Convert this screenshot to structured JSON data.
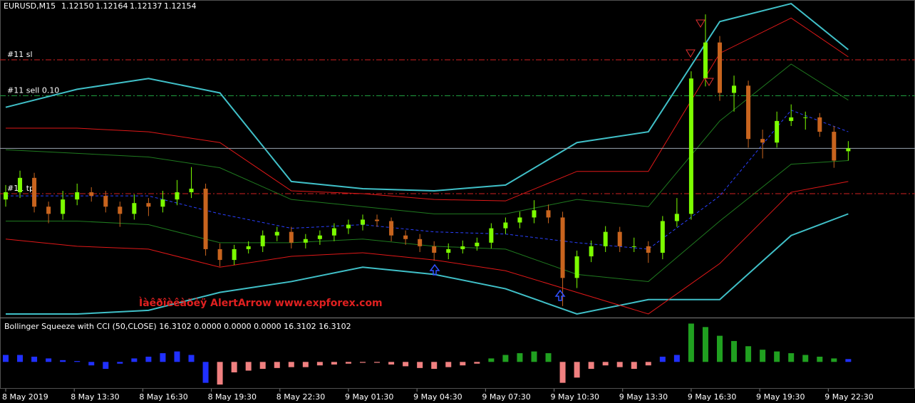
{
  "chart_data": [
    {
      "type": "candlestick",
      "title": "EURUSD,M15",
      "last_labels": [
        "1.12150",
        "1.12164",
        "1.12137",
        "1.12154"
      ],
      "ylim": [
        1.1192,
        1.1236
      ],
      "bull_color": "#7cfc00",
      "bear_color": "#c8641e",
      "bid_line_color": "#9aa4b0",
      "candles": [
        [
          1.12083,
          1.12103,
          1.12073,
          1.12093
        ],
        [
          1.12093,
          1.12123,
          1.12085,
          1.12113
        ],
        [
          1.12113,
          1.1212,
          1.12065,
          1.12073
        ],
        [
          1.12073,
          1.1208,
          1.1205,
          1.12063
        ],
        [
          1.12063,
          1.12095,
          1.12055,
          1.12083
        ],
        [
          1.12083,
          1.12105,
          1.12075,
          1.12093
        ],
        [
          1.12093,
          1.121,
          1.1208,
          1.12088
        ],
        [
          1.12088,
          1.12095,
          1.12065,
          1.12073
        ],
        [
          1.12073,
          1.1208,
          1.12045,
          1.12063
        ],
        [
          1.12063,
          1.1209,
          1.12055,
          1.12078
        ],
        [
          1.12078,
          1.12085,
          1.1206,
          1.12073
        ],
        [
          1.12073,
          1.12095,
          1.12065,
          1.12083
        ],
        [
          1.12083,
          1.1211,
          1.12075,
          1.12093
        ],
        [
          1.12093,
          1.12128,
          1.12085,
          1.12098
        ],
        [
          1.12098,
          1.12105,
          1.12005,
          1.12014
        ],
        [
          1.12014,
          1.12022,
          1.1199,
          1.11999
        ],
        [
          1.11999,
          1.1202,
          1.11992,
          1.12014
        ],
        [
          1.12014,
          1.12025,
          1.12008,
          1.12018
        ],
        [
          1.12018,
          1.1204,
          1.1201,
          1.12033
        ],
        [
          1.12033,
          1.12045,
          1.12025,
          1.12038
        ],
        [
          1.12038,
          1.12045,
          1.12015,
          1.12023
        ],
        [
          1.12023,
          1.12035,
          1.12015,
          1.12028
        ],
        [
          1.12028,
          1.1204,
          1.1202,
          1.12033
        ],
        [
          1.12033,
          1.1205,
          1.12025,
          1.12043
        ],
        [
          1.12043,
          1.12055,
          1.12035,
          1.12048
        ],
        [
          1.12048,
          1.12062,
          1.1204,
          1.12055
        ],
        [
          1.12055,
          1.12062,
          1.12045,
          1.12053
        ],
        [
          1.12053,
          1.12058,
          1.12025,
          1.12033
        ],
        [
          1.12033,
          1.1204,
          1.1202,
          1.12028
        ],
        [
          1.12028,
          1.12035,
          1.1201,
          1.12018
        ],
        [
          1.12018,
          1.12025,
          1.11998,
          1.12009
        ],
        [
          1.12009,
          1.12022,
          1.12,
          1.12014
        ],
        [
          1.12014,
          1.12026,
          1.12008,
          1.12018
        ],
        [
          1.12018,
          1.1203,
          1.12012,
          1.12023
        ],
        [
          1.12023,
          1.1205,
          1.12015,
          1.12043
        ],
        [
          1.12043,
          1.12058,
          1.12035,
          1.12051
        ],
        [
          1.12051,
          1.12066,
          1.12043,
          1.12058
        ],
        [
          1.12058,
          1.12082,
          1.1205,
          1.12068
        ],
        [
          1.12068,
          1.12076,
          1.1205,
          1.12058
        ],
        [
          1.12058,
          1.12066,
          1.11935,
          1.11974
        ],
        [
          1.11974,
          1.12012,
          1.1196,
          1.12004
        ],
        [
          1.12004,
          1.12026,
          1.11996,
          1.12018
        ],
        [
          1.12018,
          1.12046,
          1.1201,
          1.12038
        ],
        [
          1.12038,
          1.12045,
          1.1201,
          1.12018
        ],
        [
          1.12018,
          1.1203,
          1.1201,
          1.12018
        ],
        [
          1.12018,
          1.12025,
          1.11995,
          1.12009
        ],
        [
          1.12009,
          1.1206,
          1.12,
          1.12053
        ],
        [
          1.12053,
          1.12085,
          1.12045,
          1.12063
        ],
        [
          1.12063,
          1.12261,
          1.12055,
          1.12251
        ],
        [
          1.12251,
          1.1234,
          1.1224,
          1.12301
        ],
        [
          1.12301,
          1.1231,
          1.1222,
          1.12231
        ],
        [
          1.12231,
          1.12255,
          1.12205,
          1.12241
        ],
        [
          1.12241,
          1.12248,
          1.12155,
          1.12167
        ],
        [
          1.12167,
          1.1218,
          1.1214,
          1.12162
        ],
        [
          1.12162,
          1.12205,
          1.12155,
          1.12192
        ],
        [
          1.12192,
          1.12215,
          1.12185,
          1.12197
        ],
        [
          1.12197,
          1.12205,
          1.1218,
          1.12197
        ],
        [
          1.12197,
          1.12203,
          1.1217,
          1.12177
        ],
        [
          1.12177,
          1.12185,
          1.12127,
          1.12137
        ],
        [
          1.1215,
          1.12164,
          1.12137,
          1.12154
        ]
      ],
      "bands": {
        "x": [
          0,
          5,
          10,
          15,
          20,
          25,
          30,
          35,
          40,
          45,
          50,
          55,
          59
        ],
        "series": [
          {
            "color": "#40c0c8",
            "values": [
              1.12211,
              1.12236,
              1.12251,
              1.12231,
              1.12108,
              1.12098,
              1.12095,
              1.12103,
              1.12162,
              1.12177,
              1.1233,
              1.12355,
              1.12291
            ]
          },
          {
            "color": "#40c0c8",
            "values": [
              1.11924,
              1.11924,
              1.11929,
              1.11954,
              1.11969,
              1.11989,
              1.11979,
              1.11959,
              1.11924,
              1.11944,
              1.11944,
              1.12033,
              1.12063
            ]
          },
          {
            "color": "#e01818",
            "values": [
              1.12182,
              1.12182,
              1.12177,
              1.12162,
              1.12095,
              1.12091,
              1.12083,
              1.12081,
              1.12122,
              1.12122,
              1.12286,
              1.12335,
              1.12281
            ]
          },
          {
            "color": "#e01818",
            "values": [
              1.12028,
              1.12018,
              1.12014,
              1.11989,
              1.12004,
              1.12009,
              1.11999,
              1.11984,
              1.11954,
              1.11924,
              1.11994,
              1.12093,
              1.12108
            ]
          },
          {
            "color": "#1f7a1f",
            "values": [
              1.12152,
              1.12147,
              1.12142,
              1.12127,
              1.12083,
              1.12073,
              1.12063,
              1.12063,
              1.12083,
              1.12073,
              1.12192,
              1.12271,
              1.12221
            ]
          },
          {
            "color": "#1f7a1f",
            "values": [
              1.12053,
              1.12053,
              1.12048,
              1.12023,
              1.12023,
              1.12028,
              1.12018,
              1.12014,
              1.11979,
              1.11969,
              1.12053,
              1.12132,
              1.12137
            ]
          },
          {
            "color": "#2a40ff",
            "dashed": true,
            "values": [
              1.12088,
              1.12088,
              1.12088,
              1.12063,
              1.12043,
              1.12048,
              1.12038,
              1.12035,
              1.12023,
              1.12014,
              1.12088,
              1.12207,
              1.12177
            ]
          }
        ]
      },
      "levels": [
        {
          "label": "#11 sl",
          "value": 1.12277,
          "color": "#d02020"
        },
        {
          "label": "#11 sell 0.10",
          "value": 1.12227,
          "color": "#20a040"
        },
        {
          "label": "#11 tp",
          "value": 1.12091,
          "color": "#d02020"
        }
      ],
      "annotation": "Ìàêðîèêàöèÿ AlertArrow www.expforex.com"
    },
    {
      "type": "bar",
      "title": "Bollinger Squeeze with CCI (50,CLOSE) 16.3102 0.0000 0.0000 0.0000 16.3102 16.3102",
      "ylim": [
        -150,
        230
      ],
      "values": [
        40,
        40,
        30,
        20,
        10,
        5,
        -20,
        -40,
        -10,
        20,
        30,
        50,
        60,
        40,
        -120,
        -130,
        -60,
        -50,
        -40,
        -35,
        -30,
        -30,
        -20,
        -15,
        -10,
        -5,
        -5,
        -15,
        -25,
        -35,
        -40,
        -30,
        -20,
        -10,
        20,
        40,
        50,
        60,
        50,
        -120,
        -90,
        -40,
        -20,
        -30,
        -40,
        -20,
        30,
        40,
        220,
        200,
        150,
        120,
        90,
        70,
        60,
        50,
        40,
        30,
        20,
        16.3102
      ],
      "colors": [
        "#2030ff",
        "#2030ff",
        "#2030ff",
        "#2030ff",
        "#2030ff",
        "#2030ff",
        "#2030ff",
        "#2030ff",
        "#2030ff",
        "#2030ff",
        "#2030ff",
        "#2030ff",
        "#2030ff",
        "#2030ff",
        "#2030ff",
        "#f08080",
        "#f08080",
        "#f08080",
        "#f08080",
        "#f08080",
        "#f08080",
        "#f08080",
        "#f08080",
        "#f08080",
        "#f08080",
        "#f08080",
        "#f08080",
        "#f08080",
        "#f08080",
        "#f08080",
        "#f08080",
        "#f08080",
        "#f08080",
        "#f08080",
        "#20a020",
        "#20a020",
        "#20a020",
        "#20a020",
        "#20a020",
        "#f08080",
        "#f08080",
        "#f08080",
        "#f08080",
        "#f08080",
        "#f08080",
        "#f08080",
        "#2030ff",
        "#2030ff",
        "#20a020",
        "#20a020",
        "#20a020",
        "#20a020",
        "#20a020",
        "#20a020",
        "#20a020",
        "#20a020",
        "#20a020",
        "#20a020",
        "#20a020",
        "#2030ff"
      ],
      "xticks": [
        {
          "value": 0,
          "label": "8 May 2019"
        },
        {
          "value": 4.8,
          "label": "8 May 13:30"
        },
        {
          "value": 9.6,
          "label": "8 May 16:30"
        },
        {
          "value": 14.4,
          "label": "8 May 19:30"
        },
        {
          "value": 19.2,
          "label": "8 May 22:30"
        },
        {
          "value": 24,
          "label": "9 May 01:30"
        },
        {
          "value": 28.8,
          "label": "9 May 04:30"
        },
        {
          "value": 33.6,
          "label": "9 May 07:30"
        },
        {
          "value": 38.4,
          "label": "9 May 10:30"
        },
        {
          "value": 43.2,
          "label": "9 May 13:30"
        },
        {
          "value": 48,
          "label": "9 May 16:30"
        },
        {
          "value": 52.8,
          "label": "9 May 19:30"
        },
        {
          "value": 57.6,
          "label": "9 May 22:30"
        }
      ]
    }
  ]
}
